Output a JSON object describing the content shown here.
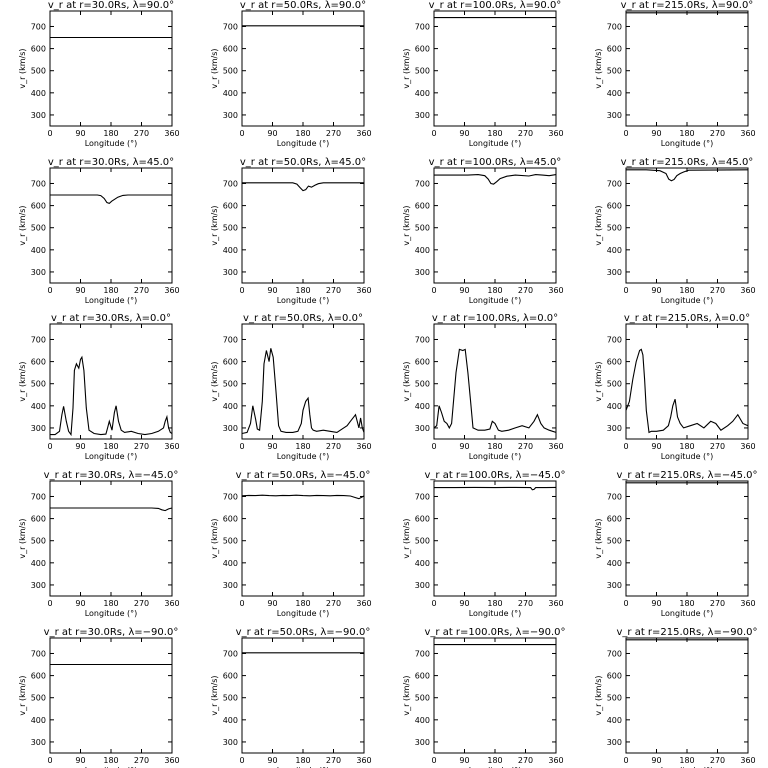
{
  "chart_data": [
    {
      "type": "line",
      "title": "v_r at r=30.0Rs, λ=90.0°",
      "xlabel": "Longitude (°)",
      "ylabel": "v_r (km/s)",
      "xlim": [
        0,
        360
      ],
      "ylim": [
        250,
        770
      ],
      "xticks": [
        0,
        90,
        180,
        270,
        360
      ],
      "yticks": [
        300,
        400,
        500,
        600,
        700
      ],
      "series": [
        {
          "x": [
            0,
            360
          ],
          "y": [
            650,
            650
          ]
        }
      ]
    },
    {
      "type": "line",
      "title": "v_r at r=50.0Rs, λ=90.0°",
      "xlabel": "Longitude (°)",
      "ylabel": "v_r (km/s)",
      "xlim": [
        0,
        360
      ],
      "ylim": [
        250,
        770
      ],
      "xticks": [
        0,
        90,
        180,
        270,
        360
      ],
      "yticks": [
        300,
        400,
        500,
        600,
        700
      ],
      "series": [
        {
          "x": [
            0,
            360
          ],
          "y": [
            703,
            703
          ]
        }
      ]
    },
    {
      "type": "line",
      "title": "v_r at r=100.0Rs, λ=90.0°",
      "xlabel": "Longitude (°)",
      "ylabel": "v_r (km/s)",
      "xlim": [
        0,
        360
      ],
      "ylim": [
        250,
        770
      ],
      "xticks": [
        0,
        90,
        180,
        270,
        360
      ],
      "yticks": [
        300,
        400,
        500,
        600,
        700
      ],
      "series": [
        {
          "x": [
            0,
            360
          ],
          "y": [
            740,
            740
          ]
        }
      ]
    },
    {
      "type": "line",
      "title": "v_r at r=215.0Rs, λ=90.0°",
      "xlabel": "Longitude (°)",
      "ylabel": "v_r (km/s)",
      "xlim": [
        0,
        360
      ],
      "ylim": [
        250,
        770
      ],
      "xticks": [
        0,
        90,
        180,
        270,
        360
      ],
      "yticks": [
        300,
        400,
        500,
        600,
        700
      ],
      "series": [
        {
          "x": [
            0,
            360
          ],
          "y": [
            762,
            762
          ]
        }
      ]
    },
    {
      "type": "line",
      "title": "v_r at r=30.0Rs, λ=45.0°",
      "xlabel": "Longitude (°)",
      "ylabel": "v_r (km/s)",
      "xlim": [
        0,
        360
      ],
      "ylim": [
        250,
        770
      ],
      "xticks": [
        0,
        90,
        180,
        270,
        360
      ],
      "yticks": [
        300,
        400,
        500,
        600,
        700
      ],
      "series": [
        {
          "x": [
            0,
            140,
            150,
            160,
            168,
            175,
            182,
            190,
            200,
            215,
            230,
            360
          ],
          "y": [
            648,
            648,
            645,
            632,
            614,
            610,
            620,
            628,
            638,
            646,
            648,
            648
          ]
        }
      ]
    },
    {
      "type": "line",
      "title": "v_r at r=50.0Rs, λ=45.0°",
      "xlabel": "Longitude (°)",
      "ylabel": "v_r (km/s)",
      "xlim": [
        0,
        360
      ],
      "ylim": [
        250,
        770
      ],
      "xticks": [
        0,
        90,
        180,
        270,
        360
      ],
      "yticks": [
        300,
        400,
        500,
        600,
        700
      ],
      "series": [
        {
          "x": [
            0,
            150,
            162,
            172,
            180,
            188,
            196,
            205,
            215,
            225,
            240,
            360
          ],
          "y": [
            703,
            703,
            697,
            680,
            668,
            672,
            688,
            683,
            692,
            699,
            703,
            703
          ]
        }
      ]
    },
    {
      "type": "line",
      "title": "v_r at r=100.0Rs, λ=45.0°",
      "xlabel": "Longitude (°)",
      "ylabel": "v_r (km/s)",
      "xlim": [
        0,
        360
      ],
      "ylim": [
        250,
        770
      ],
      "xticks": [
        0,
        90,
        180,
        270,
        360
      ],
      "yticks": [
        300,
        400,
        500,
        600,
        700
      ],
      "series": [
        {
          "x": [
            0,
            100,
            130,
            150,
            160,
            168,
            176,
            185,
            195,
            215,
            240,
            280,
            300,
            320,
            340,
            360
          ],
          "y": [
            738,
            738,
            740,
            735,
            720,
            700,
            697,
            708,
            722,
            733,
            738,
            734,
            740,
            738,
            735,
            740
          ]
        }
      ]
    },
    {
      "type": "line",
      "title": "v_r at r=215.0Rs, λ=45.0°",
      "xlabel": "Longitude (°)",
      "ylabel": "v_r (km/s)",
      "xlim": [
        0,
        360
      ],
      "ylim": [
        250,
        770
      ],
      "xticks": [
        0,
        90,
        180,
        270,
        360
      ],
      "yticks": [
        300,
        400,
        500,
        600,
        700
      ],
      "series": [
        {
          "x": [
            0,
            60,
            100,
            118,
            126,
            134,
            142,
            150,
            160,
            170,
            185,
            360
          ],
          "y": [
            762,
            762,
            758,
            745,
            720,
            712,
            718,
            735,
            745,
            752,
            760,
            762
          ]
        }
      ]
    },
    {
      "type": "line",
      "title": "v_r at r=30.0Rs, λ=0.0°",
      "xlabel": "Longitude (°)",
      "ylabel": "v_r (km/s)",
      "xlim": [
        0,
        360
      ],
      "ylim": [
        250,
        770
      ],
      "xticks": [
        0,
        90,
        180,
        270,
        360
      ],
      "yticks": [
        300,
        400,
        500,
        600,
        700
      ],
      "series": [
        {
          "x": [
            0,
            15,
            28,
            35,
            40,
            48,
            55,
            62,
            68,
            72,
            78,
            85,
            90,
            94,
            100,
            107,
            115,
            130,
            150,
            165,
            170,
            175,
            183,
            190,
            195,
            202,
            210,
            220,
            240,
            260,
            280,
            300,
            320,
            335,
            340,
            345,
            350,
            355,
            360
          ],
          "y": [
            270,
            270,
            285,
            360,
            398,
            330,
            285,
            270,
            390,
            560,
            590,
            570,
            610,
            620,
            560,
            390,
            290,
            275,
            270,
            272,
            300,
            330,
            290,
            370,
            400,
            330,
            290,
            280,
            285,
            275,
            270,
            275,
            285,
            300,
            330,
            350,
            300,
            280,
            275
          ]
        }
      ]
    },
    {
      "type": "line",
      "title": "v_r at r=50.0Rs, λ=0.0°",
      "xlabel": "Longitude (°)",
      "ylabel": "v_r (km/s)",
      "xlim": [
        0,
        360
      ],
      "ylim": [
        250,
        770
      ],
      "xticks": [
        0,
        90,
        180,
        270,
        360
      ],
      "yticks": [
        300,
        400,
        500,
        600,
        700
      ],
      "series": [
        {
          "x": [
            0,
            15,
            25,
            32,
            40,
            45,
            52,
            60,
            65,
            72,
            80,
            85,
            92,
            100,
            108,
            115,
            130,
            150,
            165,
            175,
            180,
            188,
            195,
            200,
            205,
            210,
            220,
            240,
            260,
            280,
            300,
            310,
            320,
            330,
            335,
            340,
            345,
            350,
            355,
            360
          ],
          "y": [
            275,
            280,
            320,
            400,
            340,
            295,
            290,
            420,
            590,
            650,
            600,
            660,
            620,
            470,
            310,
            285,
            280,
            280,
            285,
            320,
            380,
            420,
            435,
            360,
            300,
            290,
            285,
            290,
            285,
            280,
            300,
            310,
            330,
            350,
            360,
            330,
            300,
            345,
            300,
            280
          ]
        }
      ]
    },
    {
      "type": "line",
      "title": "v_r at r=100.0Rs, λ=0.0°",
      "xlabel": "Longitude (°)",
      "ylabel": "v_r (km/s)",
      "xlim": [
        0,
        360
      ],
      "ylim": [
        250,
        770
      ],
      "xticks": [
        0,
        90,
        180,
        270,
        360
      ],
      "yticks": [
        300,
        400,
        500,
        600,
        700
      ],
      "series": [
        {
          "x": [
            0,
            8,
            15,
            22,
            30,
            38,
            45,
            52,
            58,
            65,
            75,
            85,
            92,
            100,
            108,
            115,
            130,
            150,
            165,
            172,
            180,
            190,
            200,
            220,
            240,
            260,
            280,
            295,
            305,
            315,
            325,
            340,
            350,
            360
          ],
          "y": [
            300,
            310,
            400,
            370,
            330,
            320,
            300,
            320,
            430,
            550,
            655,
            650,
            655,
            550,
            420,
            300,
            290,
            290,
            295,
            330,
            320,
            290,
            285,
            290,
            300,
            310,
            300,
            330,
            360,
            320,
            300,
            290,
            285,
            280
          ]
        }
      ]
    },
    {
      "type": "line",
      "title": "v_r at r=215.0Rs, λ=0.0°",
      "xlabel": "Longitude (°)",
      "ylabel": "v_r (km/s)",
      "xlim": [
        0,
        360
      ],
      "ylim": [
        250,
        770
      ],
      "xticks": [
        0,
        90,
        180,
        270,
        360
      ],
      "yticks": [
        300,
        400,
        500,
        600,
        700
      ],
      "series": [
        {
          "x": [
            0,
            10,
            20,
            30,
            40,
            45,
            50,
            55,
            60,
            68,
            75,
            90,
            110,
            125,
            132,
            138,
            145,
            152,
            160,
            170,
            190,
            210,
            230,
            250,
            265,
            280,
            300,
            315,
            330,
            345,
            360
          ],
          "y": [
            380,
            420,
            520,
            600,
            650,
            655,
            630,
            520,
            380,
            280,
            285,
            285,
            290,
            310,
            350,
            400,
            430,
            350,
            320,
            300,
            310,
            320,
            300,
            330,
            320,
            290,
            310,
            330,
            360,
            320,
            310
          ]
        }
      ]
    },
    {
      "type": "line",
      "title": "v_r at r=30.0Rs, λ=−45.0°",
      "xlabel": "Longitude (°)",
      "ylabel": "v_r (km/s)",
      "xlim": [
        0,
        360
      ],
      "ylim": [
        250,
        770
      ],
      "xticks": [
        0,
        90,
        180,
        270,
        360
      ],
      "yticks": [
        300,
        400,
        500,
        600,
        700
      ],
      "series": [
        {
          "x": [
            0,
            300,
            320,
            330,
            340,
            350,
            360
          ],
          "y": [
            648,
            648,
            646,
            640,
            636,
            644,
            648
          ]
        }
      ]
    },
    {
      "type": "line",
      "title": "v_r at r=50.0Rs, λ=−45.0°",
      "xlabel": "Longitude (°)",
      "ylabel": "v_r (km/s)",
      "xlim": [
        0,
        360
      ],
      "ylim": [
        250,
        770
      ],
      "xticks": [
        0,
        90,
        180,
        270,
        360
      ],
      "yticks": [
        300,
        400,
        500,
        600,
        700
      ],
      "series": [
        {
          "x": [
            0,
            20,
            40,
            60,
            80,
            100,
            120,
            140,
            160,
            180,
            200,
            220,
            240,
            260,
            280,
            300,
            320,
            335,
            345,
            355,
            360
          ],
          "y": [
            703,
            705,
            704,
            706,
            704,
            703,
            705,
            704,
            706,
            704,
            703,
            705,
            704,
            703,
            705,
            704,
            702,
            695,
            690,
            698,
            703
          ]
        }
      ]
    },
    {
      "type": "line",
      "title": "v_r at r=100.0Rs, λ=−45.0°",
      "xlabel": "Longitude (°)",
      "ylabel": "v_r (km/s)",
      "xlim": [
        0,
        360
      ],
      "ylim": [
        250,
        770
      ],
      "xticks": [
        0,
        90,
        180,
        270,
        360
      ],
      "yticks": [
        300,
        400,
        500,
        600,
        700
      ],
      "series": [
        {
          "x": [
            0,
            60,
            120,
            180,
            240,
            285,
            290,
            295,
            300,
            330,
            360
          ],
          "y": [
            740,
            740,
            741,
            740,
            741,
            740,
            730,
            732,
            740,
            740,
            741
          ]
        }
      ]
    },
    {
      "type": "line",
      "title": "v_r at r=215.0Rs, λ=−45.0°",
      "xlabel": "Longitude (°)",
      "ylabel": "v_r (km/s)",
      "xlim": [
        0,
        360
      ],
      "ylim": [
        250,
        770
      ],
      "xticks": [
        0,
        90,
        180,
        270,
        360
      ],
      "yticks": [
        300,
        400,
        500,
        600,
        700
      ],
      "series": [
        {
          "x": [
            0,
            360
          ],
          "y": [
            762,
            762
          ]
        }
      ]
    },
    {
      "type": "line",
      "title": "v_r at r=30.0Rs, λ=−90.0°",
      "xlabel": "Longitude (°)",
      "ylabel": "v_r (km/s)",
      "xlim": [
        0,
        360
      ],
      "ylim": [
        250,
        770
      ],
      "xticks": [
        0,
        90,
        180,
        270,
        360
      ],
      "yticks": [
        300,
        400,
        500,
        600,
        700
      ],
      "series": [
        {
          "x": [
            0,
            360
          ],
          "y": [
            650,
            650
          ]
        }
      ]
    },
    {
      "type": "line",
      "title": "v_r at r=50.0Rs, λ=−90.0°",
      "xlabel": "Longitude (°)",
      "ylabel": "v_r (km/s)",
      "xlim": [
        0,
        360
      ],
      "ylim": [
        250,
        770
      ],
      "xticks": [
        0,
        90,
        180,
        270,
        360
      ],
      "yticks": [
        300,
        400,
        500,
        600,
        700
      ],
      "series": [
        {
          "x": [
            0,
            360
          ],
          "y": [
            703,
            703
          ]
        }
      ]
    },
    {
      "type": "line",
      "title": "v_r at r=100.0Rs, λ=−90.0°",
      "xlabel": "Longitude (°)",
      "ylabel": "v_r (km/s)",
      "xlim": [
        0,
        360
      ],
      "ylim": [
        250,
        770
      ],
      "xticks": [
        0,
        90,
        180,
        270,
        360
      ],
      "yticks": [
        300,
        400,
        500,
        600,
        700
      ],
      "series": [
        {
          "x": [
            0,
            360
          ],
          "y": [
            740,
            740
          ]
        }
      ]
    },
    {
      "type": "line",
      "title": "v_r at r=215.0Rs, λ=−90.0°",
      "xlabel": "Longitude (°)",
      "ylabel": "v_r (km/s)",
      "xlim": [
        0,
        360
      ],
      "ylim": [
        250,
        770
      ],
      "xticks": [
        0,
        90,
        180,
        270,
        360
      ],
      "yticks": [
        300,
        400,
        500,
        600,
        700
      ],
      "series": [
        {
          "x": [
            0,
            360
          ],
          "y": [
            762,
            762
          ]
        }
      ]
    }
  ],
  "style": {
    "line_color": "#000000",
    "axis_color": "#000000",
    "background": "#ffffff"
  }
}
